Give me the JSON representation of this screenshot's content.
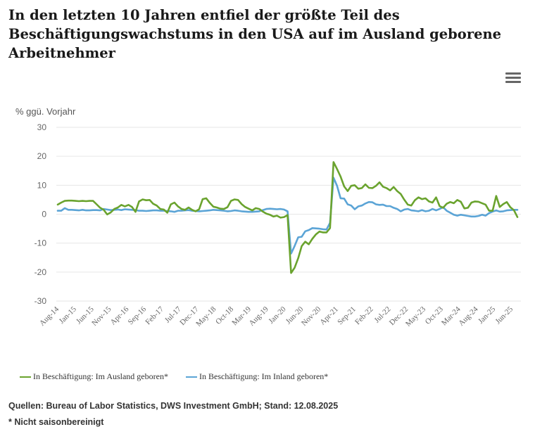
{
  "title": "In den letzten 10 Jahren entfiel der größte Teil des Beschäftigungswachstums in den USA auf im Ausland geborene Arbeitnehmer",
  "source": "Quellen: Bureau of Labor Statistics, DWS Investment GmbH; Stand: 12.08.2025",
  "note": "* Nicht saisonbereinigt",
  "menu_icon": "hamburger-menu-icon",
  "colors": {
    "foreign": "#6aa32e",
    "native": "#5ba4d6",
    "grid": "#e6e6e6",
    "axis_text": "#666666"
  },
  "chart_data": {
    "type": "line",
    "ylabel": "% ggü. Vorjahr",
    "xlabel": "",
    "ylim": [
      -30,
      30
    ],
    "yticks": [
      30,
      20,
      10,
      0,
      -10,
      -20,
      -30
    ],
    "grid": true,
    "legend_position": "bottom-left",
    "x_tick_labels": [
      "Aug-14",
      "Jan-15",
      "Jun-15",
      "Nov-15",
      "Apr-16",
      "Sep-16",
      "Feb-17",
      "Jul-17",
      "Dec-17",
      "May-18",
      "Oct-18",
      "Mar-19",
      "Aug-19",
      "Jan-20",
      "Jun-20",
      "Nov-20",
      "Apr-21",
      "Sep-21",
      "Feb-22",
      "Jul-22",
      "Dec-22",
      "May-23",
      "Oct-23",
      "Mar-24",
      "Aug-24",
      "Jan-25",
      "Jun-25"
    ],
    "x_start": "Aug-14",
    "x_end": "Jul-25",
    "series": [
      {
        "name": "In Beschäftigung: Im Ausland geboren*",
        "color": "#6aa32e",
        "values": [
          3.3,
          4.0,
          4.6,
          4.7,
          4.7,
          4.6,
          4.5,
          4.6,
          4.5,
          4.6,
          4.6,
          3.4,
          2.2,
          1.5,
          -0.1,
          0.6,
          1.8,
          2.3,
          3.2,
          2.7,
          3.2,
          2.5,
          0.8,
          4.4,
          5.1,
          4.8,
          4.9,
          3.6,
          3.0,
          1.8,
          1.6,
          0.5,
          3.4,
          4.0,
          2.7,
          1.8,
          1.5,
          2.3,
          1.5,
          1.0,
          1.7,
          5.2,
          5.5,
          3.9,
          2.6,
          2.3,
          1.9,
          1.8,
          2.4,
          4.6,
          5.1,
          4.9,
          3.5,
          2.5,
          1.9,
          1.3,
          2.1,
          1.8,
          0.9,
          0.2,
          -0.2,
          -0.8,
          -0.5,
          -1.2,
          -1.0,
          -0.3,
          -20.3,
          -18.5,
          -15.2,
          -11.0,
          -9.5,
          -10.4,
          -8.5,
          -7.0,
          -6.0,
          -6.3,
          -6.3,
          -4.8,
          18.0,
          15.6,
          13.0,
          9.6,
          8.0,
          9.8,
          10.0,
          8.8,
          9.0,
          10.3,
          9.1,
          9.0,
          9.8,
          11.0,
          9.5,
          9.0,
          8.2,
          9.4,
          8.0,
          7.0,
          5.0,
          3.3,
          3.0,
          4.8,
          5.8,
          5.2,
          5.5,
          4.4,
          4.0,
          5.8,
          2.8,
          2.2,
          3.6,
          4.2,
          3.8,
          4.9,
          4.3,
          2.0,
          2.2,
          4.0,
          4.4,
          4.3,
          3.8,
          3.3,
          1.2,
          1.2,
          6.3,
          2.5,
          3.5,
          4.2,
          2.4,
          1.4,
          -1.0
        ]
      },
      {
        "name": "In Beschäftigung: Im Inland geboren*",
        "color": "#5ba4d6",
        "values": [
          1.2,
          1.2,
          2.1,
          1.5,
          1.5,
          1.4,
          1.3,
          1.5,
          1.3,
          1.3,
          1.4,
          1.4,
          1.3,
          1.8,
          1.6,
          1.4,
          1.5,
          1.6,
          1.4,
          1.7,
          1.6,
          1.5,
          1.4,
          1.2,
          1.2,
          1.1,
          1.2,
          1.3,
          1.3,
          1.2,
          1.2,
          1.1,
          1.0,
          0.8,
          1.2,
          1.2,
          1.3,
          1.4,
          1.2,
          1.1,
          1.0,
          1.1,
          1.2,
          1.3,
          1.5,
          1.4,
          1.3,
          1.2,
          1.0,
          1.1,
          1.3,
          1.2,
          1.0,
          0.9,
          0.8,
          0.8,
          0.9,
          1.0,
          1.4,
          1.8,
          1.9,
          1.8,
          1.7,
          1.8,
          1.6,
          1.0,
          -13.6,
          -11.0,
          -8.0,
          -7.8,
          -5.9,
          -5.5,
          -4.8,
          -4.9,
          -5.0,
          -5.2,
          -5.3,
          -3.0,
          12.6,
          9.8,
          5.5,
          5.4,
          3.4,
          3.0,
          1.7,
          2.7,
          3.0,
          3.7,
          4.2,
          4.1,
          3.4,
          3.2,
          3.3,
          2.8,
          2.8,
          2.2,
          1.8,
          1.0,
          1.6,
          1.8,
          1.3,
          1.2,
          1.0,
          1.4,
          1.0,
          1.2,
          1.8,
          1.3,
          1.8,
          2.4,
          1.2,
          0.5,
          -0.2,
          -0.5,
          -0.2,
          -0.4,
          -0.6,
          -0.8,
          -0.8,
          -0.6,
          -0.2,
          -0.5,
          0.4,
          0.9,
          1.3,
          0.9,
          1.0,
          1.3,
          1.4,
          1.5,
          1.5
        ]
      }
    ]
  }
}
